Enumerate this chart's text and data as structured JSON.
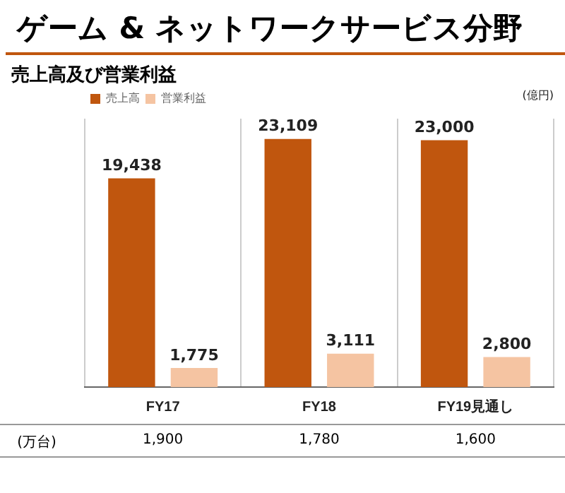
{
  "chart_data": {
    "type": "bar",
    "title": "ゲーム & ネットワークサービス分野",
    "subtitle": "売上高及び営業利益",
    "ylabel": "(億円)",
    "categories": [
      "FY17",
      "FY18",
      "FY19見通し"
    ],
    "series": [
      {
        "name": "売上高",
        "color": "#c0560e",
        "values": [
          19438,
          23109,
          23000
        ],
        "value_labels": [
          "19,438",
          "23,109",
          "23,000"
        ]
      },
      {
        "name": "営業利益",
        "color": "#f5c4a2",
        "values": [
          1775,
          3111,
          2800
        ],
        "value_labels": [
          "1,775",
          "3,111",
          "2,800"
        ]
      }
    ],
    "legend": "top left",
    "grid": "x",
    "annotations": [
      "(万台)",
      "1,900",
      "1,780",
      "1,600"
    ]
  }
}
